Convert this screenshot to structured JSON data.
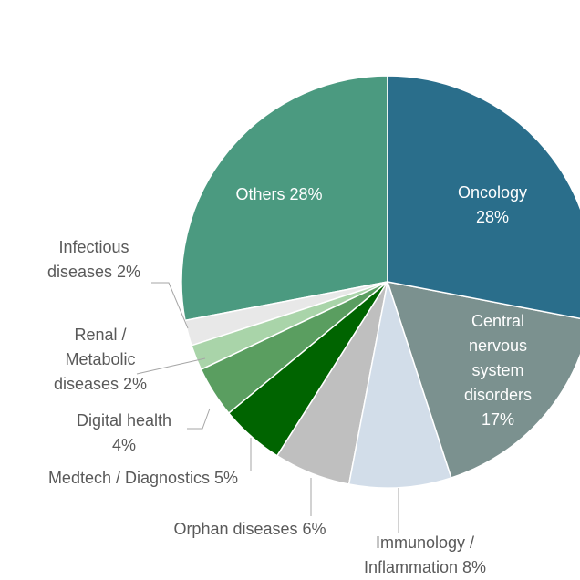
{
  "chart_data": {
    "type": "pie",
    "categories": [
      "Oncology",
      "Central nervous system disorders",
      "Immunology / Inflammation",
      "Orphan diseases",
      "Medtech / Diagnostics",
      "Digital health",
      "Renal / Metabolic diseases",
      "Infectious diseases",
      "Others"
    ],
    "values": [
      28,
      17,
      8,
      6,
      5,
      4,
      2,
      2,
      28
    ],
    "value_labels": [
      "28%",
      "17%",
      "8%",
      "6%",
      "5%",
      "4%",
      "2%",
      "2%",
      "28%"
    ],
    "colors": [
      "#2a6e8b",
      "#7b918f",
      "#d2dde9",
      "#bfbfbf",
      "#006400",
      "#5a9e60",
      "#a9d4a9",
      "#e8e8e8",
      "#4b9a80"
    ]
  }
}
